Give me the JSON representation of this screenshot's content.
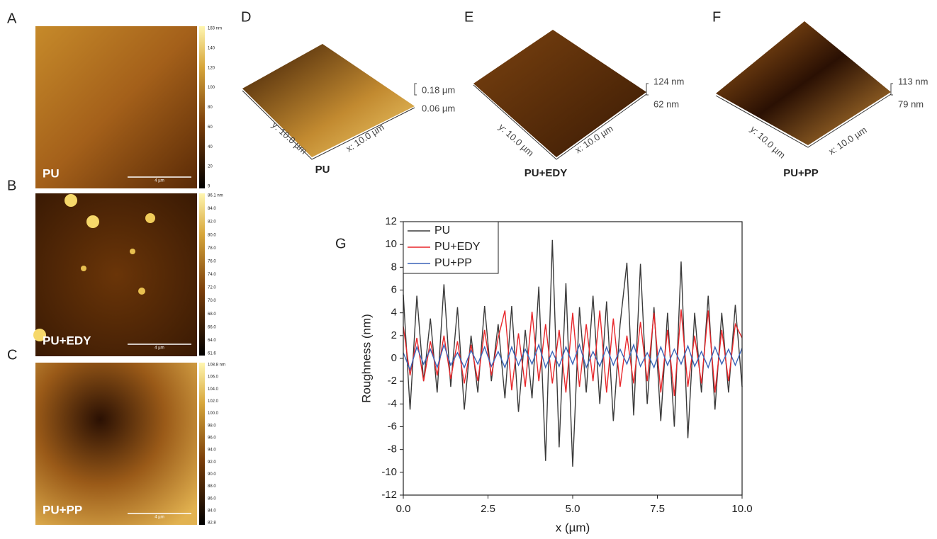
{
  "panels": [
    {
      "letter": "A",
      "label": "PU",
      "scale_bar": "4 µm",
      "colorbar": [
        "183 nm",
        "140",
        "120",
        "100",
        "80",
        "60",
        "40",
        "20",
        "9"
      ]
    },
    {
      "letter": "B",
      "label": "PU+EDY",
      "scale_bar": "4 µm",
      "colorbar": [
        "86.1 nm",
        "84.0",
        "82.0",
        "80.0",
        "78.0",
        "76.0",
        "74.0",
        "72.0",
        "70.0",
        "68.0",
        "66.0",
        "64.0",
        "61.6"
      ]
    },
    {
      "letter": "C",
      "label": "PU+PP",
      "scale_bar": "4 µm",
      "colorbar": [
        "108.8 nm",
        "106.0",
        "104.0",
        "102.0",
        "100.0",
        "98.0",
        "96.0",
        "94.0",
        "92.0",
        "90.0",
        "88.0",
        "86.0",
        "84.0",
        "82.8"
      ]
    }
  ],
  "surfaces": [
    {
      "letter": "D",
      "label": "PU",
      "y_axis": "y: 10.0 µm",
      "x_axis": "x: 10.0 µm",
      "z_top": "0.18 µm",
      "z_bottom": "0.06 µm"
    },
    {
      "letter": "E",
      "label": "PU+EDY",
      "y_axis": "y: 10.0 µm",
      "x_axis": "x: 10.0 µm",
      "z_top": "124 nm",
      "z_bottom": "62 nm"
    },
    {
      "letter": "F",
      "label": "PU+PP",
      "y_axis": "y: 10.0 µm",
      "x_axis": "x: 10.0 µm",
      "z_top": "113 nm",
      "z_bottom": "79 nm"
    }
  ],
  "chart_data": {
    "type": "line",
    "panel_label": "G",
    "x_label": "x (µm)",
    "y_label": "Roughness (nm)",
    "x": [
      0,
      0.2,
      0.4,
      0.6,
      0.8,
      1,
      1.2,
      1.4,
      1.6,
      1.8,
      2,
      2.2,
      2.4,
      2.6,
      2.8,
      3,
      3.2,
      3.4,
      3.6,
      3.8,
      4,
      4.2,
      4.4,
      4.6,
      4.8,
      5,
      5.2,
      5.4,
      5.6,
      5.8,
      6,
      6.2,
      6.4,
      6.6,
      6.8,
      7,
      7.2,
      7.4,
      7.6,
      7.8,
      8,
      8.2,
      8.4,
      8.6,
      8.8,
      9,
      9.2,
      9.4,
      9.6,
      9.8,
      10
    ],
    "series": [
      {
        "name": "PU",
        "color": "#3a3a3a",
        "values": [
          5.6,
          -4.5,
          5.5,
          -2,
          3.5,
          -3,
          6.5,
          -2.5,
          4.5,
          -4.5,
          2,
          -3,
          4.6,
          -2,
          3,
          -3.5,
          4.6,
          -4.7,
          2.5,
          -3.5,
          6.3,
          -9,
          10.4,
          -7.8,
          6.6,
          -9.5,
          4.5,
          -3,
          5.5,
          -4,
          5,
          -5.5,
          3,
          8.4,
          -5,
          8.3,
          -4,
          4.5,
          -5.5,
          4,
          -6,
          8.5,
          -7,
          4,
          -3,
          5.5,
          -4.5,
          4,
          -3,
          4.7,
          -2.5
        ]
      },
      {
        "name": "PU+EDY",
        "color": "#e8262a",
        "values": [
          2.8,
          -1.5,
          1.8,
          -2,
          1.5,
          -1.5,
          2,
          -1.8,
          1.5,
          -2.2,
          1.2,
          -2,
          2.5,
          -1.5,
          1.8,
          4.2,
          -2.8,
          2.2,
          -2.5,
          4.1,
          -2,
          3,
          -2.2,
          2.5,
          -3,
          4,
          -2.5,
          3,
          -2,
          4.2,
          -3,
          3.5,
          -2.5,
          2,
          -2.2,
          3.2,
          -2,
          4,
          -3,
          2.5,
          -3.3,
          4.3,
          -2.5,
          2,
          -2.2,
          4.2,
          -3,
          2.5,
          -2,
          3,
          1.8
        ]
      },
      {
        "name": "PU+PP",
        "color": "#3a64b8",
        "values": [
          0.5,
          -1,
          1,
          -0.5,
          0.8,
          -0.8,
          1.2,
          -0.6,
          0.5,
          -0.8,
          0.7,
          -0.5,
          1,
          -0.7,
          0.6,
          -0.8,
          1,
          -0.6,
          0.8,
          -0.5,
          1.2,
          -0.8,
          0.6,
          -0.7,
          1,
          -0.5,
          1.2,
          -0.8,
          0.6,
          -0.7,
          1,
          -0.6,
          0.8,
          -0.5,
          1.2,
          -0.7,
          0.5,
          -0.8,
          1,
          -0.6,
          0.8,
          -0.5,
          1.1,
          -0.7,
          0.6,
          -0.8,
          1,
          -0.5,
          0.8,
          -0.6,
          0.9
        ]
      }
    ],
    "xlim": [
      0,
      10
    ],
    "xticks": [
      {
        "value": 0,
        "label": "0.0"
      },
      2.5,
      {
        "value": 5,
        "label": "5.0"
      },
      7.5,
      {
        "value": 10,
        "label": "10.0"
      }
    ],
    "ylim": [
      -12,
      12
    ],
    "yticks": [
      -12,
      -10,
      -8,
      -6,
      -4,
      -2,
      0,
      2,
      4,
      6,
      8,
      10,
      12
    ],
    "legend": "upper-left"
  }
}
